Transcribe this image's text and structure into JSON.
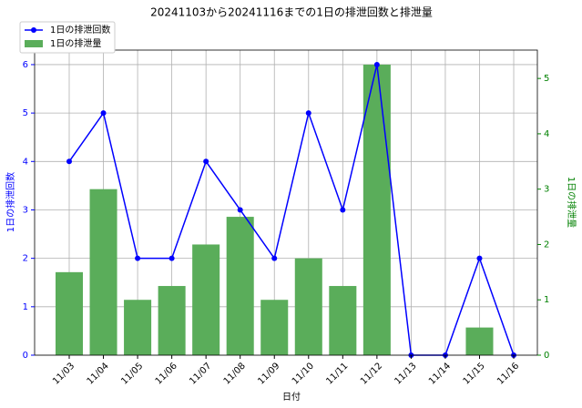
{
  "chart_data": {
    "type": "combo",
    "title": "20241103から20241116までの1日の排泄回数と排泄量",
    "xlabel": "日付",
    "ylabel": "1日の排泄回数",
    "y2label": "1日の排泄量",
    "categories": [
      "11/03",
      "11/04",
      "11/05",
      "11/06",
      "11/07",
      "11/08",
      "11/09",
      "11/10",
      "11/11",
      "11/12",
      "11/13",
      "11/14",
      "11/15",
      "11/16"
    ],
    "series": [
      {
        "name": "1日の排泄回数",
        "type": "line",
        "color": "#0000ff",
        "values": [
          4,
          5,
          2,
          2,
          4,
          3,
          2,
          5,
          3,
          6,
          0,
          0,
          2,
          0
        ]
      },
      {
        "name": "1日の排泄量",
        "type": "bar",
        "axis": "y2",
        "color": "#5aad5a",
        "values": [
          1.5,
          3,
          1,
          1.25,
          2,
          2.5,
          1,
          1.75,
          1.25,
          5.25,
          0,
          0,
          0.5,
          0
        ]
      }
    ],
    "ylim": [
      0,
      6.3
    ],
    "yticks": [
      0,
      1,
      2,
      3,
      4,
      5,
      6
    ],
    "ycolor": "#0000ff",
    "y2lim": [
      0,
      5.5125
    ],
    "y2ticks": [
      0,
      1,
      2,
      3,
      4,
      5
    ],
    "y2color": "#008000",
    "grid": true,
    "legend": "upper left"
  }
}
